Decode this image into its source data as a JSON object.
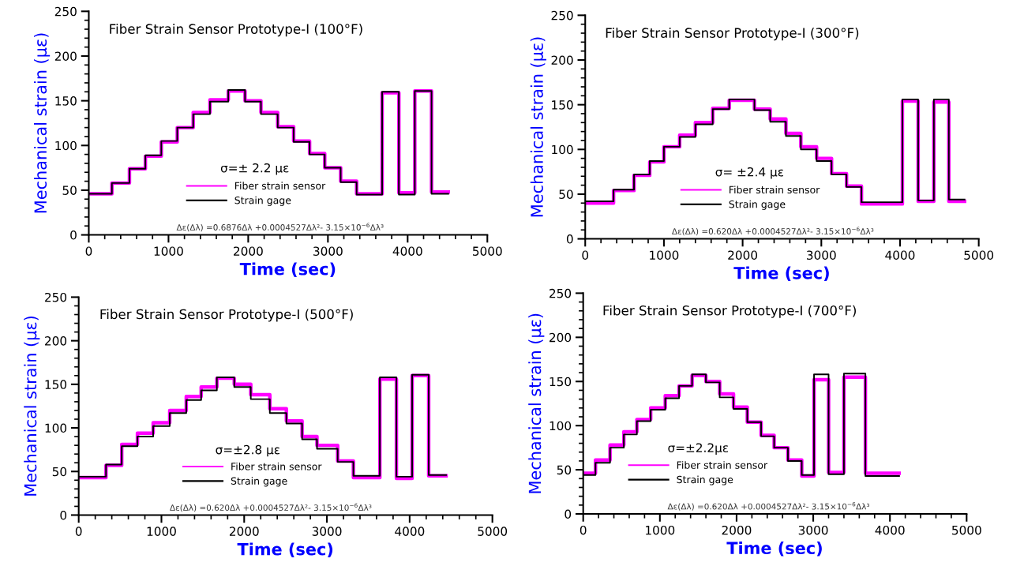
{
  "chart_data": [
    {
      "type": "step",
      "title": "Fiber Strain Sensor Prototype-I (100°F)",
      "xlabel": "Time (sec)",
      "ylabel": "Mechanical strain (με)",
      "xlim": [
        0,
        5000
      ],
      "xticks": [
        0,
        1000,
        2000,
        3000,
        4000,
        5000
      ],
      "ylim": [
        0,
        250
      ],
      "yticks": [
        0,
        50,
        100,
        150,
        200,
        250
      ],
      "legend": "bottom",
      "grid": false,
      "x": [
        0,
        290,
        510,
        710,
        910,
        1110,
        1310,
        1520,
        1750,
        1960,
        2160,
        2370,
        2570,
        2770,
        2960,
        3160,
        3360,
        3680,
        3890,
        4090,
        4300,
        4510
      ],
      "series": [
        {
          "name": "Fiber strain sensor",
          "color": "#ff00ff",
          "values": [
            46,
            58,
            74,
            88,
            104,
            120,
            137,
            151,
            161,
            150,
            137,
            121,
            105,
            91,
            75,
            60,
            46,
            159,
            47,
            161,
            48,
            48
          ]
        },
        {
          "name": "Strain gage",
          "color": "#000000",
          "values": [
            46,
            58,
            74,
            89,
            105,
            120,
            135,
            149,
            162,
            149,
            135,
            120,
            104,
            90,
            75,
            59,
            45,
            160,
            45,
            161,
            46,
            46
          ]
        }
      ],
      "annotations": [
        "σ=± 2.2 με",
        "Δε(Δλ) =0.6876Δλ +0.0004527Δλ²- 3.15×10$^{−6}$Δλ³"
      ]
    },
    {
      "type": "step",
      "title": "Fiber Strain Sensor Prototype-I (300°F)",
      "xlabel": "Time (sec)",
      "ylabel": "Mechanical strain (με)",
      "xlim": [
        0,
        5000
      ],
      "xticks": [
        0,
        1000,
        2000,
        3000,
        4000,
        5000
      ],
      "ylim": [
        0,
        250
      ],
      "yticks": [
        0,
        50,
        100,
        150,
        200,
        250
      ],
      "legend": "bottom",
      "grid": false,
      "x": [
        0,
        360,
        620,
        820,
        1000,
        1200,
        1400,
        1620,
        1830,
        2150,
        2350,
        2550,
        2740,
        2940,
        3130,
        3320,
        3510,
        4030,
        4230,
        4430,
        4620,
        4820
      ],
      "series": [
        {
          "name": "Fiber strain sensor",
          "color": "#ff00ff",
          "values": [
            40,
            54,
            71,
            86,
            103,
            116,
            130,
            146,
            155,
            145,
            134,
            118,
            103,
            90,
            73,
            59,
            39,
            154,
            42,
            153,
            42,
            42
          ]
        },
        {
          "name": "Strain gage",
          "color": "#000000",
          "values": [
            42,
            55,
            72,
            87,
            103,
            114,
            128,
            145,
            156,
            144,
            131,
            115,
            100,
            87,
            72,
            58,
            41,
            156,
            43,
            156,
            44,
            44
          ]
        }
      ],
      "annotations": [
        "σ= ±2.4 με",
        "Δε(Δλ) =0.620Δλ +0.0004527Δλ²- 3.15×10$^{−6}$Δλ³"
      ]
    },
    {
      "type": "step",
      "title": "Fiber Strain Sensor Prototype-I (500°F)",
      "xlabel": "Time (sec)",
      "ylabel": "Mechanical strain (με)",
      "xlim": [
        0,
        5000
      ],
      "xticks": [
        0,
        1000,
        2000,
        3000,
        4000,
        5000
      ],
      "ylim": [
        0,
        250
      ],
      "yticks": [
        0,
        50,
        100,
        150,
        200,
        250
      ],
      "legend": "bottom",
      "grid": false,
      "x": [
        0,
        330,
        520,
        710,
        900,
        1100,
        1300,
        1480,
        1670,
        1880,
        2080,
        2310,
        2510,
        2700,
        2880,
        3130,
        3320,
        3640,
        3840,
        4030,
        4230,
        4440
      ],
      "series": [
        {
          "name": "Fiber strain sensor",
          "color": "#ff00ff",
          "values": [
            43,
            57,
            81,
            94,
            106,
            120,
            136,
            147,
            157,
            150,
            138,
            122,
            108,
            90,
            80,
            62,
            43,
            156,
            42,
            160,
            45,
            45
          ]
        },
        {
          "name": "Strain gage",
          "color": "#000000",
          "values": [
            44,
            58,
            79,
            90,
            102,
            117,
            132,
            143,
            158,
            147,
            133,
            117,
            105,
            87,
            76,
            61,
            45,
            158,
            44,
            161,
            46,
            46
          ]
        }
      ],
      "annotations": [
        "σ=±2.8 με",
        "Δε(Δλ) =0.620Δλ +0.0004527Δλ²- 3.15×10$^{−6}$Δλ³"
      ]
    },
    {
      "type": "step",
      "title": "Fiber Strain Sensor Prototype-I (700°F)",
      "xlabel": "Time (sec)",
      "ylabel": "Mechanical strain (με)",
      "xlim": [
        0,
        5000
      ],
      "xticks": [
        0,
        1000,
        2000,
        3000,
        4000,
        5000
      ],
      "ylim": [
        0,
        250
      ],
      "yticks": [
        0,
        50,
        100,
        150,
        200,
        250
      ],
      "legend": "bottom",
      "grid": false,
      "x": [
        0,
        160,
        350,
        530,
        700,
        880,
        1070,
        1250,
        1420,
        1600,
        1780,
        1960,
        2140,
        2320,
        2490,
        2670,
        2850,
        3010,
        3200,
        3400,
        3680,
        4120
      ],
      "series": [
        {
          "name": "Fiber strain sensor",
          "color": "#ff00ff",
          "values": [
            46,
            61,
            78,
            93,
            107,
            120,
            134,
            145,
            157,
            150,
            136,
            121,
            104,
            89,
            75,
            61,
            43,
            152,
            47,
            155,
            46,
            46
          ]
        },
        {
          "name": "Strain gage",
          "color": "#000000",
          "values": [
            44,
            58,
            75,
            90,
            105,
            118,
            131,
            145,
            158,
            149,
            132,
            119,
            104,
            88,
            75,
            60,
            44,
            158,
            45,
            159,
            43,
            43
          ]
        }
      ],
      "annotations": [
        "σ=±2.2με",
        "Δε(Δλ) =0.620Δλ +0.0004527Δλ²- 3.15×10$^{−6}$Δλ³"
      ]
    }
  ]
}
